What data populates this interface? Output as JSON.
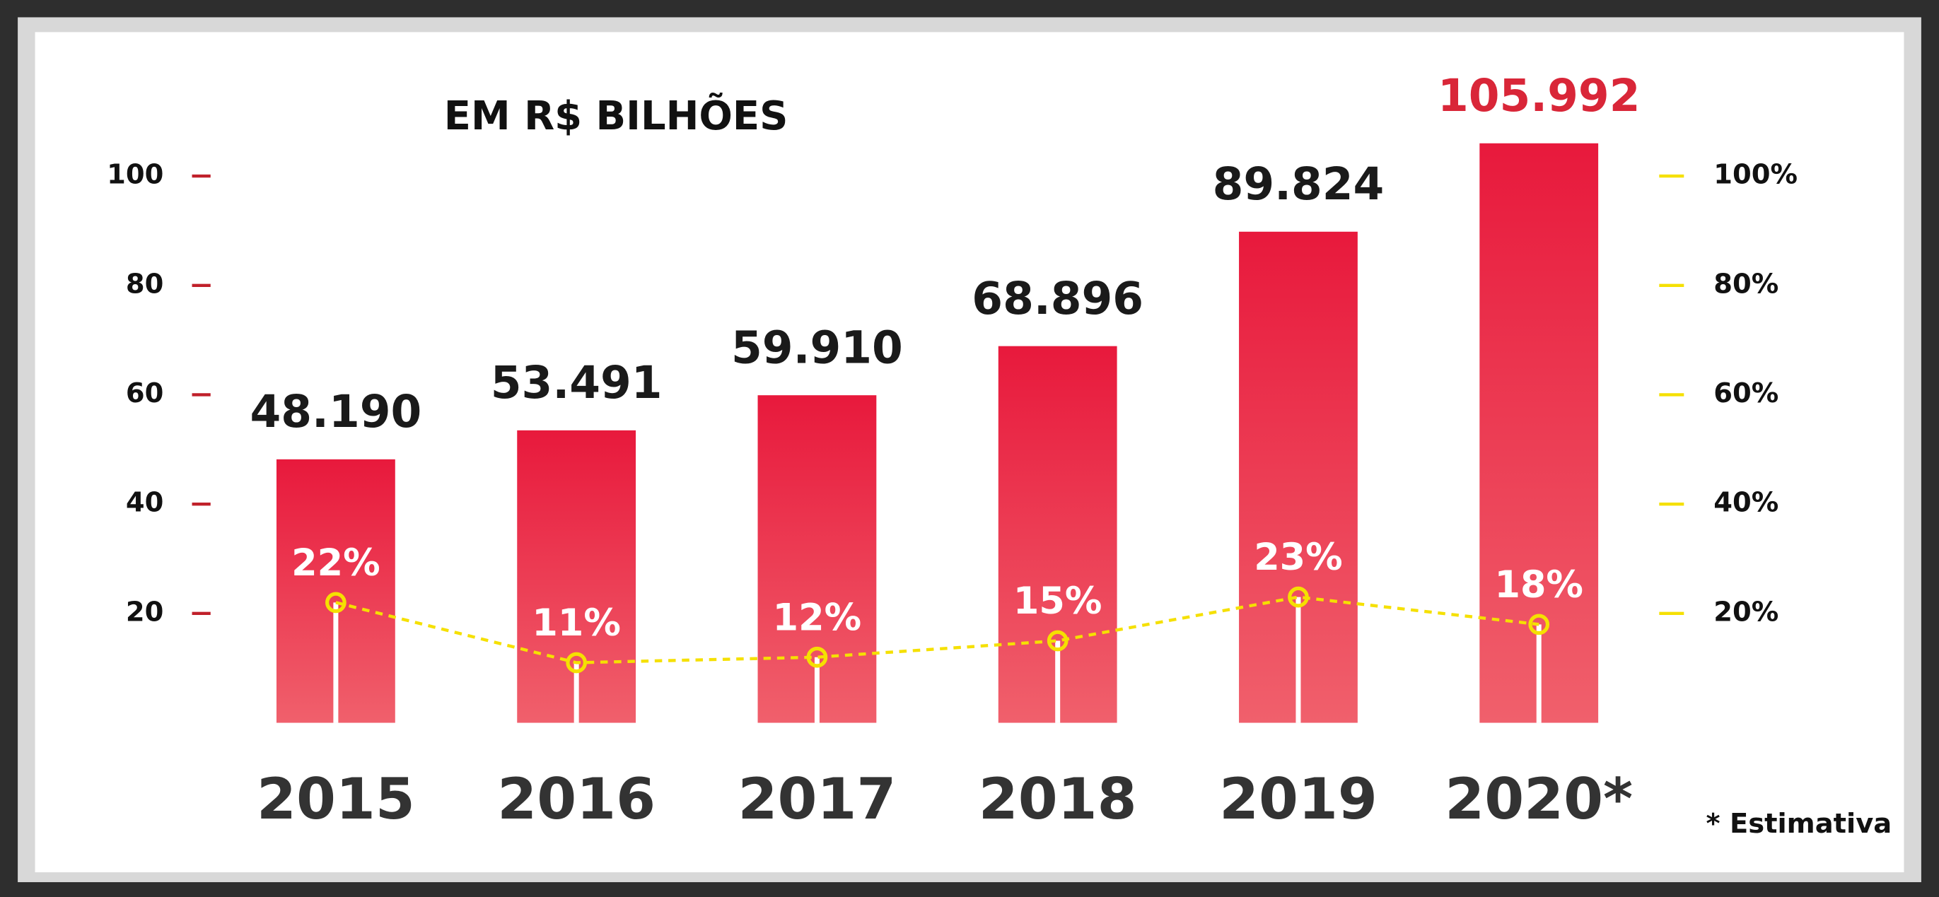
{
  "chart_data": {
    "type": "bar",
    "title": "EM R$ BILHÕES",
    "note": "* Estimativa",
    "categories": [
      "2015",
      "2016",
      "2017",
      "2018",
      "2019",
      "2020*"
    ],
    "series": [
      {
        "type": "bar",
        "values": [
          48.19,
          53.491,
          59.91,
          68.896,
          89.824,
          105.992
        ],
        "value_labels": [
          "48.190",
          "53.491",
          "59.910",
          "68.896",
          "89.824",
          "105.992"
        ],
        "color": "#e8193c",
        "label_colors": [
          "#1a1a1a",
          "#1a1a1a",
          "#1a1a1a",
          "#1a1a1a",
          "#1a1a1a",
          "#d92638"
        ]
      },
      {
        "type": "line",
        "axis": "y2",
        "values": [
          22,
          11,
          12,
          15,
          23,
          18
        ],
        "value_labels": [
          "22%",
          "11%",
          "12%",
          "15%",
          "23%",
          "18%"
        ],
        "color": "#f5e000"
      }
    ],
    "ylim": [
      0,
      110
    ],
    "yticks": [
      20,
      40,
      60,
      80,
      100
    ],
    "y2lim": [
      0,
      110
    ],
    "y2ticks": [
      {
        "value": 20,
        "label": "20%"
      },
      {
        "value": 40,
        "label": "40%"
      },
      {
        "value": 60,
        "label": "60%"
      },
      {
        "value": 80,
        "label": "80%"
      },
      {
        "value": 100,
        "label": "100%"
      }
    ]
  }
}
